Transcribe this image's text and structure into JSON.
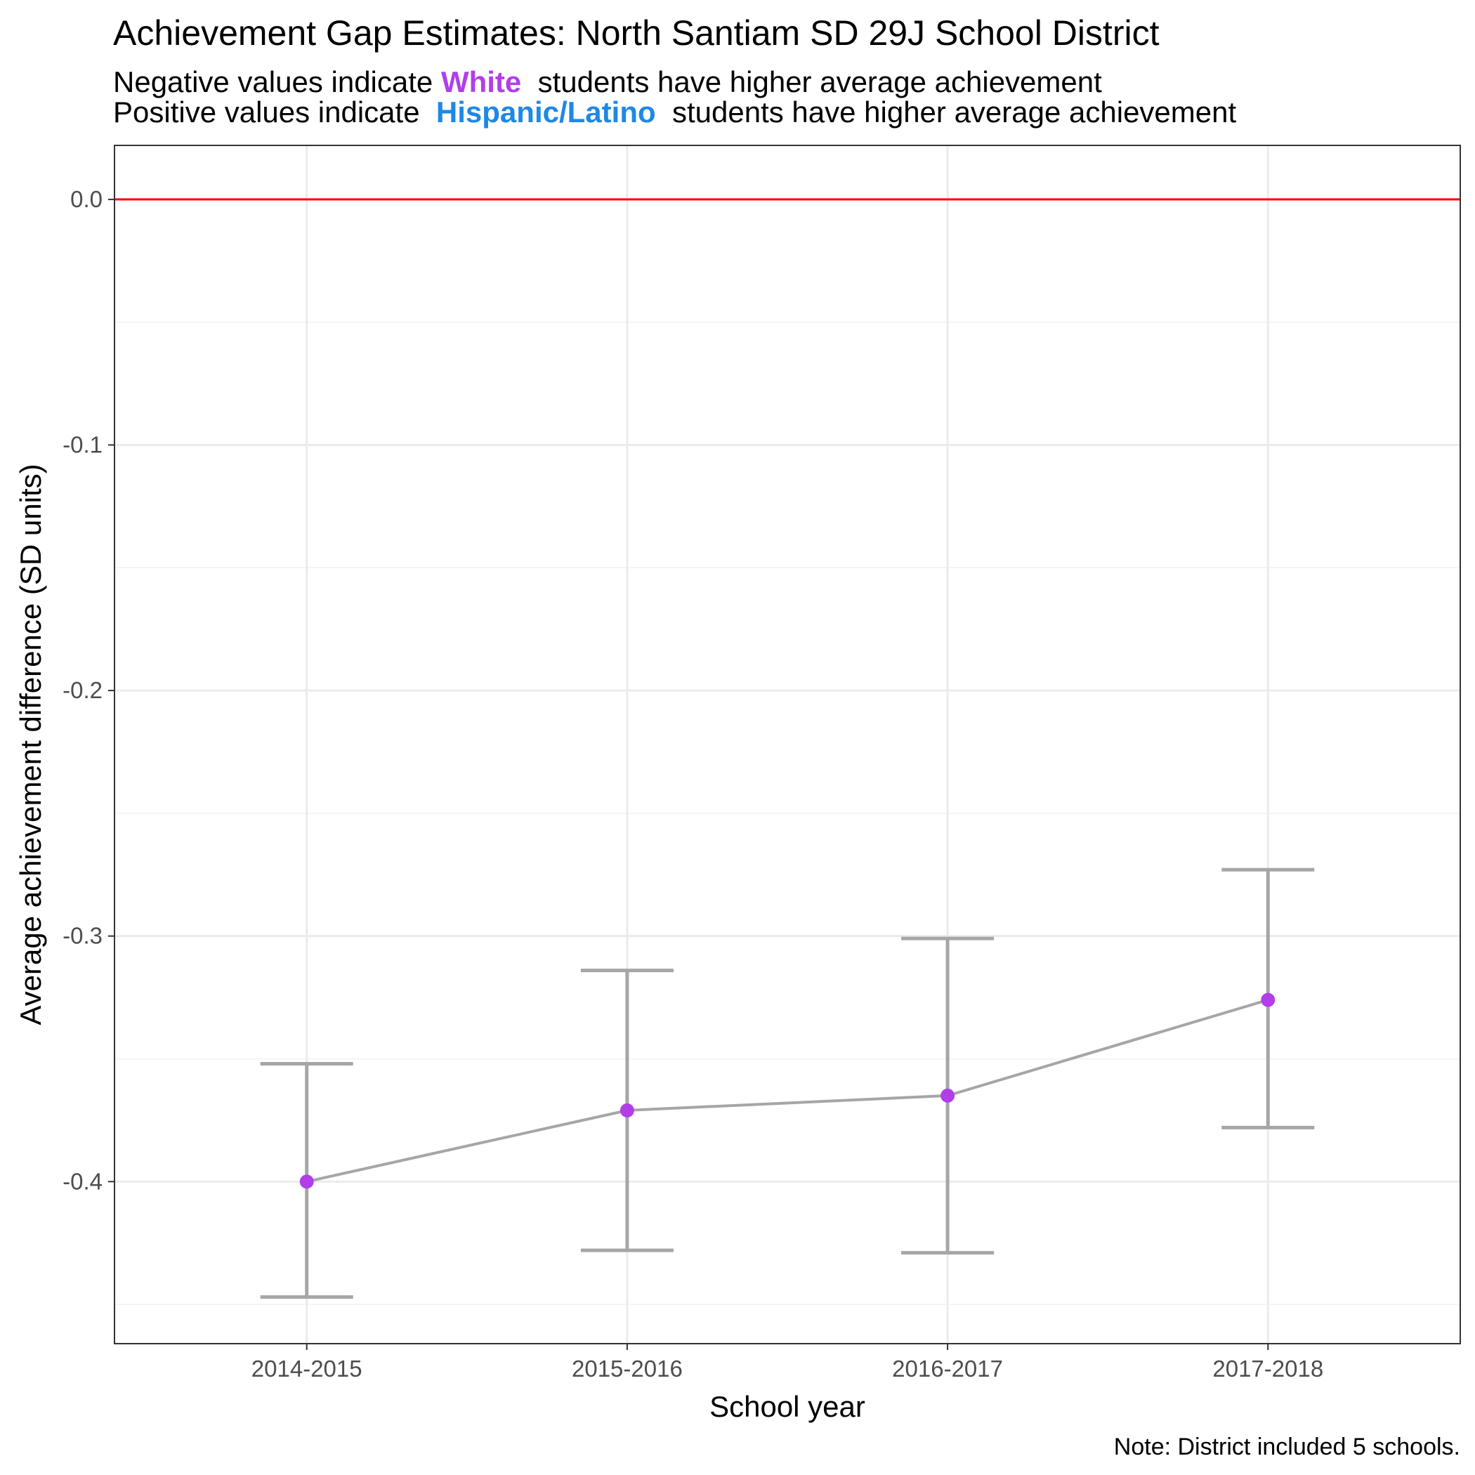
{
  "title": "Achievement Gap Estimates: North Santiam SD 29J School District",
  "subtitle": {
    "line1_pre": "Negative values indicate ",
    "line1_group": "White",
    "line1_post": "  students have higher average achievement",
    "line2_pre": "Positive values indicate  ",
    "line2_group": "Hispanic/Latino",
    "line2_post": "  students have higher average achievement"
  },
  "note": "Note: District included 5 schools.",
  "colors": {
    "white_group": "#b23ee8",
    "hispanic_group": "#1e88e5",
    "point": "#b23ee8",
    "line": "#a6a6a6",
    "reference_line": "#ff0000",
    "gridline": "#ebebeb"
  },
  "chart_data": {
    "type": "line",
    "title": "Achievement Gap Estimates: North Santiam SD 29J School District",
    "xlabel": "School year",
    "ylabel": "Average achievement difference (SD units)",
    "categories": [
      "2014-2015",
      "2015-2016",
      "2016-2017",
      "2017-2018"
    ],
    "values": [
      -0.4,
      -0.371,
      -0.365,
      -0.326
    ],
    "error_lower": [
      -0.447,
      -0.428,
      -0.429,
      -0.378
    ],
    "error_upper": [
      -0.352,
      -0.314,
      -0.301,
      -0.273
    ],
    "yticks": [
      0.0,
      -0.1,
      -0.2,
      -0.3,
      -0.4
    ],
    "ytick_labels": [
      "0.0",
      "-0.1",
      "-0.2",
      "-0.3",
      "-0.4"
    ],
    "ylim": [
      -0.466,
      0.022
    ],
    "reference_line": 0.0,
    "grid": true,
    "legend": "none"
  }
}
